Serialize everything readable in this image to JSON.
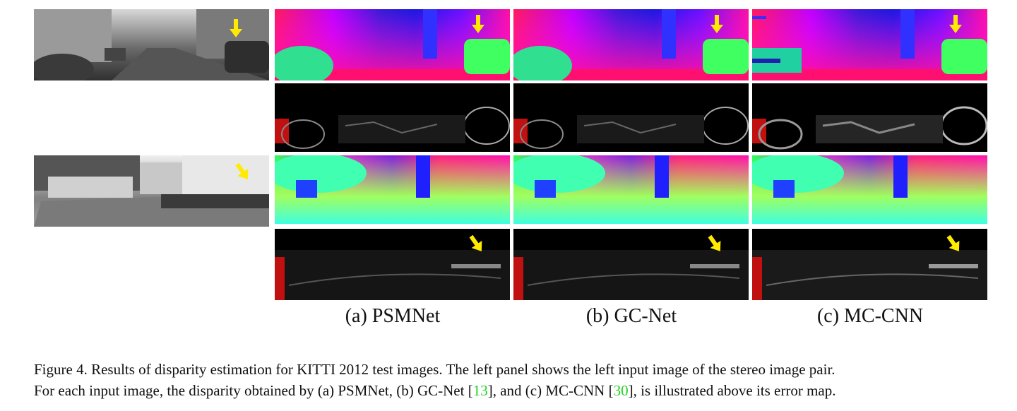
{
  "figure": {
    "column_labels": [
      "(a) PSMNet",
      "(b) GC-Net",
      "(c) MC-CNN"
    ],
    "caption": {
      "line1": "Figure 4. Results of disparity estimation for KITTI 2012 test images.  The left panel shows the left input image of the stereo image pair.",
      "line2_a": "For each input image, the disparity obtained by (a) PSMNet, (b) GC-Net [",
      "cite1": "13",
      "line2_b": "], and (c) MC-CNN [",
      "cite2": "30",
      "line2_c": "], is illustrated above its error map."
    },
    "colors": {
      "arrow": "#ffea00",
      "citation": "#1fd11f"
    }
  }
}
